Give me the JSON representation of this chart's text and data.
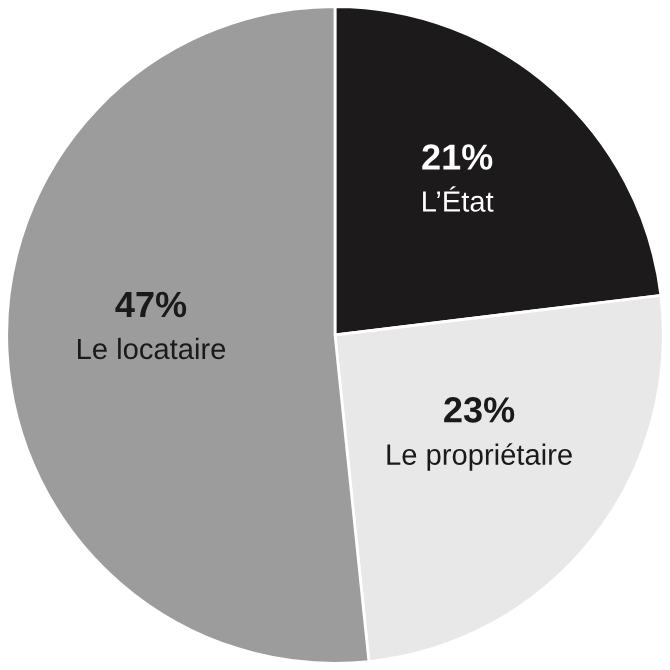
{
  "chart_data": {
    "type": "pie",
    "categories": [
      "L’État",
      "Le propriétaire",
      "Le locataire"
    ],
    "values": [
      21,
      23,
      47
    ],
    "colors": [
      "#1c1a1a",
      "#e8e8e8",
      "#9c9c9c"
    ],
    "value_labels": [
      "21%",
      "23%",
      "47%"
    ]
  }
}
